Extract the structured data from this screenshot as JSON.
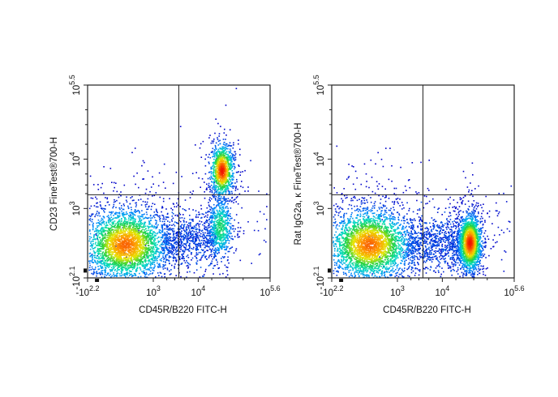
{
  "chart_data": [
    {
      "type": "scatter",
      "title": "",
      "xlabel": "CD45R/B220  FITC-H",
      "ylabel": "CD23 FineTest®700-H",
      "x_scale": "biexponential",
      "y_scale": "biexponential",
      "xlim": [
        -158.5,
        398107
      ],
      "ylim": [
        -125.9,
        316228
      ],
      "x_ticks": [
        {
          "base": "-10",
          "exp": "2.2",
          "value": -158.5
        },
        {
          "base": "10",
          "exp": "3",
          "value": 1000
        },
        {
          "base": "10",
          "exp": "4",
          "value": 10000
        },
        {
          "base": "10",
          "exp": "5.6",
          "value": 398107
        }
      ],
      "y_ticks": [
        {
          "base": "-10",
          "exp": "2.1",
          "value": -125.9
        },
        {
          "base": "10",
          "exp": "3",
          "value": 1000
        },
        {
          "base": "10",
          "exp": "4",
          "value": 10000
        },
        {
          "base": "10",
          "exp": "5.5",
          "value": 316228
        }
      ],
      "gate": {
        "x": 3700,
        "y": 1900
      },
      "populations": [
        {
          "center_x": 500,
          "center_y": 420,
          "peak_density": 0.9
        },
        {
          "center_x": 33000,
          "center_y": 6000,
          "peak_density": 1.0
        },
        {
          "center_x": 30000,
          "center_y": 700,
          "peak_density": 0.45
        }
      ],
      "grid": false,
      "legend": "none"
    },
    {
      "type": "scatter",
      "title": "",
      "xlabel": "CD45R/B220  FITC-H",
      "ylabel": "Rat IgG2a, κ FineTest®700-H",
      "x_scale": "biexponential",
      "y_scale": "biexponential",
      "xlim": [
        -158.5,
        398107
      ],
      "ylim": [
        -125.9,
        316228
      ],
      "x_ticks": [
        {
          "base": "-10",
          "exp": "2.2",
          "value": -158.5
        },
        {
          "base": "10",
          "exp": "3",
          "value": 1000
        },
        {
          "base": "10",
          "exp": "4",
          "value": 10000
        },
        {
          "base": "10",
          "exp": "5.6",
          "value": 398107
        }
      ],
      "y_ticks": [
        {
          "base": "-10",
          "exp": "2.1",
          "value": -125.9
        },
        {
          "base": "10",
          "exp": "3",
          "value": 1000
        },
        {
          "base": "10",
          "exp": "4",
          "value": 10000
        },
        {
          "base": "10",
          "exp": "5.5",
          "value": 316228
        }
      ],
      "gate": {
        "x": 3700,
        "y": 1900
      },
      "populations": [
        {
          "center_x": 500,
          "center_y": 420,
          "peak_density": 0.9
        },
        {
          "center_x": 40000,
          "center_y": 450,
          "peak_density": 1.0
        }
      ],
      "grid": false,
      "legend": "none"
    }
  ]
}
